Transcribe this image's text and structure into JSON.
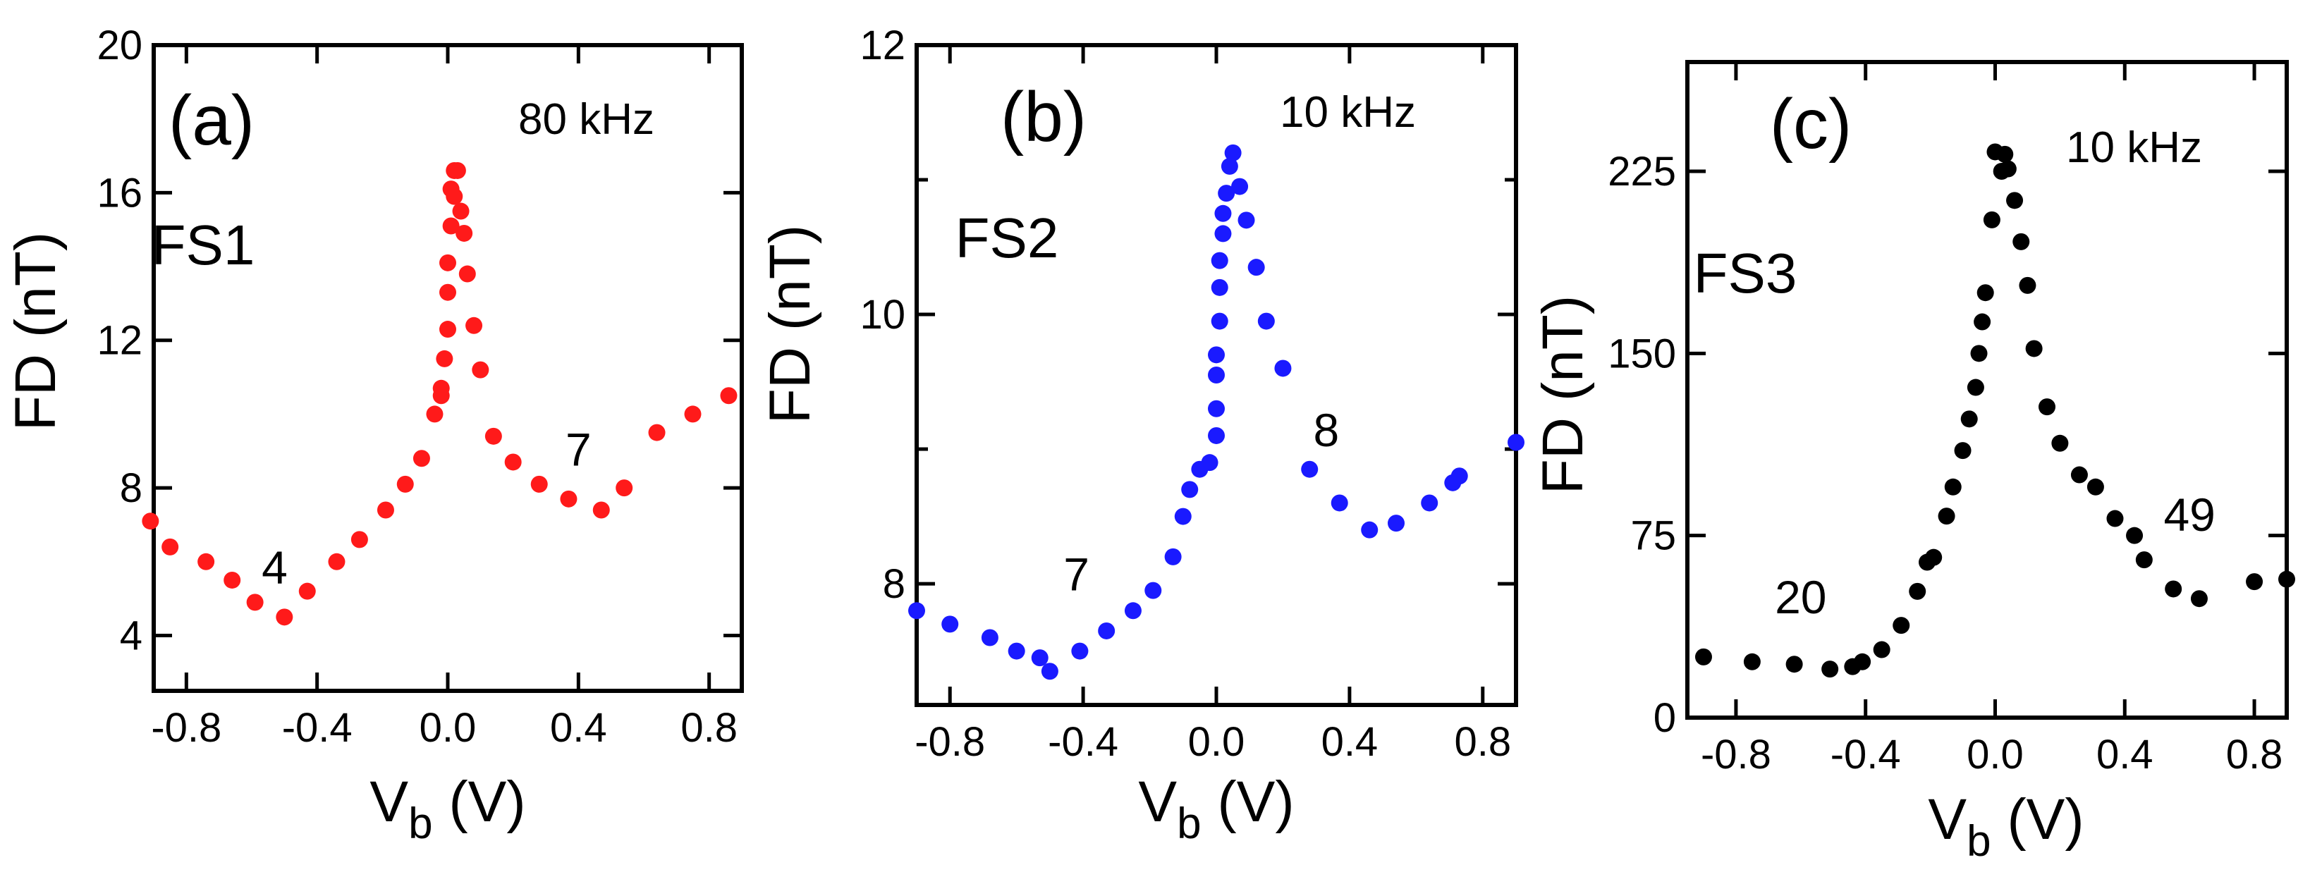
{
  "chart_data": [
    {
      "type": "scatter",
      "panel_label": "(a)",
      "frequency_label": "80 kHz",
      "sample_label": "FS1",
      "xlabel": {
        "main": "V",
        "sub": "b",
        "unit": " (V)"
      },
      "ylabel": "FD (nT)",
      "xlim": [
        -0.9,
        0.9
      ],
      "ylim": [
        2.5,
        20
      ],
      "xticks": [
        -0.8,
        -0.4,
        0.0,
        0.4,
        0.8
      ],
      "xtick_labels": [
        "-0.8",
        "-0.4",
        "0.0",
        "0.4",
        "0.8"
      ],
      "yticks": [
        4,
        8,
        12,
        16,
        20
      ],
      "ytick_labels": [
        "4",
        "8",
        "12",
        "16",
        "20"
      ],
      "color": "#ff1a1a",
      "annotations": [
        {
          "text": "4",
          "x": -0.53,
          "y": 5.4
        },
        {
          "text": "7",
          "x": 0.4,
          "y": 8.6
        }
      ],
      "series": [
        {
          "name": "FS1",
          "x": [
            -0.91,
            -0.85,
            -0.74,
            -0.66,
            -0.59,
            -0.5,
            -0.43,
            -0.34,
            -0.27,
            -0.19,
            -0.13,
            -0.08,
            -0.04,
            -0.02,
            -0.02,
            -0.01,
            0.0,
            0.0,
            0.0,
            0.01,
            0.01,
            0.02,
            0.02,
            0.03,
            0.04,
            0.05,
            0.06,
            0.08,
            0.1,
            0.14,
            0.2,
            0.28,
            0.37,
            0.47,
            0.54,
            0.64,
            0.75,
            0.86
          ],
          "y": [
            7.1,
            6.4,
            6.0,
            5.5,
            4.9,
            4.5,
            5.2,
            6.0,
            6.6,
            7.4,
            8.1,
            8.8,
            10.0,
            10.5,
            10.7,
            11.5,
            12.3,
            13.3,
            14.1,
            15.1,
            16.1,
            16.6,
            15.9,
            16.6,
            15.5,
            14.9,
            13.8,
            12.4,
            11.2,
            9.4,
            8.7,
            8.1,
            7.7,
            7.4,
            8.0,
            9.5,
            10.0,
            10.5
          ]
        }
      ]
    },
    {
      "type": "scatter",
      "panel_label": "(b)",
      "frequency_label": "10 kHz",
      "sample_label": "FS2",
      "xlabel": {
        "main": "V",
        "sub": "b",
        "unit": " (V)"
      },
      "ylabel": "FD (nT)",
      "xlim": [
        -0.9,
        0.9
      ],
      "ylim": [
        7.1,
        12
      ],
      "xticks": [
        -0.8,
        -0.4,
        0.0,
        0.4,
        0.8
      ],
      "xtick_labels": [
        "-0.8",
        "-0.4",
        "0.0",
        "0.4",
        "0.8"
      ],
      "yticks": [
        8,
        10,
        12
      ],
      "ytick_labels": [
        "8",
        "10",
        "12"
      ],
      "minor_yticks": [
        9,
        11
      ],
      "color": "#1a1aff",
      "annotations": [
        {
          "text": "7",
          "x": -0.42,
          "y": 7.95
        },
        {
          "text": "8",
          "x": 0.33,
          "y": 9.02
        }
      ],
      "series": [
        {
          "name": "FS2",
          "x": [
            -0.9,
            -0.8,
            -0.68,
            -0.6,
            -0.53,
            -0.5,
            -0.41,
            -0.33,
            -0.25,
            -0.19,
            -0.13,
            -0.1,
            -0.08,
            -0.05,
            -0.02,
            0.0,
            0.0,
            0.0,
            0.0,
            0.01,
            0.01,
            0.01,
            0.02,
            0.02,
            0.03,
            0.04,
            0.05,
            0.07,
            0.09,
            0.12,
            0.15,
            0.2,
            0.28,
            0.37,
            0.46,
            0.54,
            0.64,
            0.71,
            0.73,
            0.9
          ],
          "y": [
            7.8,
            7.7,
            7.6,
            7.5,
            7.45,
            7.35,
            7.5,
            7.65,
            7.8,
            7.95,
            8.2,
            8.5,
            8.7,
            8.85,
            8.9,
            9.1,
            9.3,
            9.55,
            9.7,
            9.95,
            10.2,
            10.4,
            10.6,
            10.75,
            10.9,
            11.1,
            11.2,
            10.95,
            10.7,
            10.35,
            9.95,
            9.6,
            8.85,
            8.6,
            8.4,
            8.45,
            8.6,
            8.75,
            8.8,
            9.05
          ]
        }
      ]
    },
    {
      "type": "scatter",
      "panel_label": "(c)",
      "frequency_label": "10 kHz",
      "sample_label": "FS3",
      "xlabel": {
        "main": "V",
        "sub": "b",
        "unit": " (V)"
      },
      "ylabel": "FD (nT)",
      "xlim": [
        -0.95,
        0.9
      ],
      "ylim": [
        0,
        270
      ],
      "xticks": [
        -0.8,
        -0.4,
        0.0,
        0.4,
        0.8
      ],
      "xtick_labels": [
        "-0.8",
        "-0.4",
        "0.0",
        "0.4",
        "0.8"
      ],
      "yticks": [
        0,
        75,
        150,
        225
      ],
      "ytick_labels": [
        "0",
        "75",
        "150",
        "225"
      ],
      "color": "#000000",
      "annotations": [
        {
          "text": "20",
          "x": -0.6,
          "y": 43
        },
        {
          "text": "49",
          "x": 0.6,
          "y": 77
        }
      ],
      "series": [
        {
          "name": "FS3",
          "x": [
            -0.9,
            -0.75,
            -0.62,
            -0.51,
            -0.44,
            -0.41,
            -0.35,
            -0.29,
            -0.24,
            -0.21,
            -0.19,
            -0.15,
            -0.13,
            -0.1,
            -0.08,
            -0.06,
            -0.05,
            -0.04,
            -0.03,
            -0.01,
            0.0,
            0.02,
            0.03,
            0.04,
            0.06,
            0.08,
            0.1,
            0.12,
            0.16,
            0.2,
            0.26,
            0.31,
            0.37,
            0.43,
            0.46,
            0.55,
            0.63,
            0.8,
            0.9
          ],
          "y": [
            25,
            23,
            22,
            20,
            21,
            23,
            28,
            38,
            52,
            64,
            66,
            83,
            95,
            110,
            123,
            136,
            150,
            163,
            175,
            205,
            233,
            225,
            232,
            226,
            213,
            196,
            178,
            152,
            128,
            113,
            100,
            95,
            82,
            75,
            65,
            53,
            49,
            56,
            57
          ]
        }
      ]
    }
  ]
}
